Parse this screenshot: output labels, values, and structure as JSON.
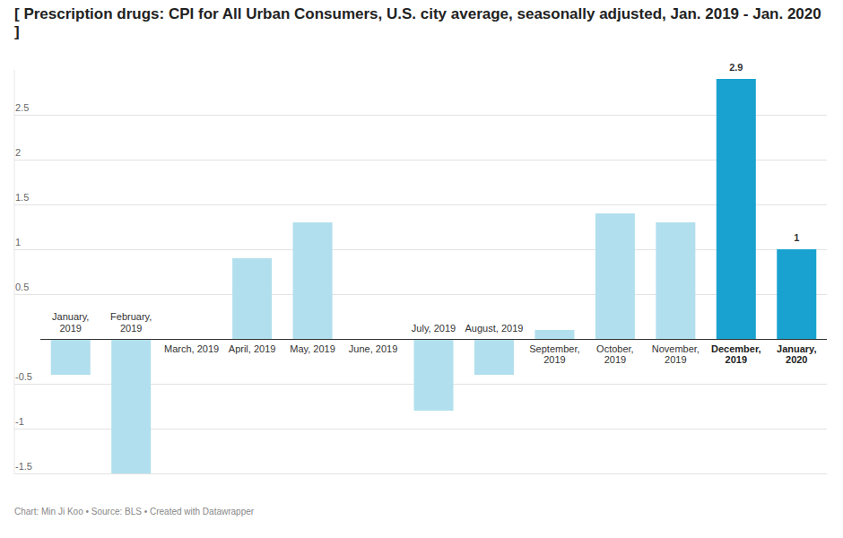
{
  "chart_data": {
    "type": "bar",
    "title": "[ Prescription drugs: CPI for All Urban Consumers, U.S. city average, seasonally adjusted, Jan. 2019 - Jan. 2020 ]",
    "caption": "Chart: Min Ji Koo • Source: BLS • Created with Datawrapper",
    "categories": [
      "January, 2019",
      "February, 2019",
      "March, 2019",
      "April, 2019",
      "May, 2019",
      "June, 2019",
      "July, 2019",
      "August, 2019",
      "September, 2019",
      "October, 2019",
      "November, 2019",
      "December, 2019",
      "January, 2020"
    ],
    "values": [
      -0.4,
      -1.5,
      0,
      0.9,
      1.3,
      0,
      -0.8,
      -0.4,
      0.1,
      1.4,
      1.3,
      2.9,
      1
    ],
    "value_labels": [
      null,
      null,
      null,
      null,
      null,
      null,
      null,
      null,
      null,
      null,
      null,
      "2.9",
      "1"
    ],
    "colors": [
      "#b1dfed",
      "#b1dfed",
      "#b1dfed",
      "#b1dfed",
      "#b1dfed",
      "#b1dfed",
      "#b1dfed",
      "#b1dfed",
      "#b1dfed",
      "#b1dfed",
      "#b1dfed",
      "#19a2cf",
      "#19a2cf"
    ],
    "ylim": [
      -1.5,
      3
    ],
    "yticks": [
      -1.5,
      -1,
      -0.5,
      0.5,
      1,
      1.5,
      2,
      2.5
    ],
    "grid": true,
    "data_labels": true
  }
}
